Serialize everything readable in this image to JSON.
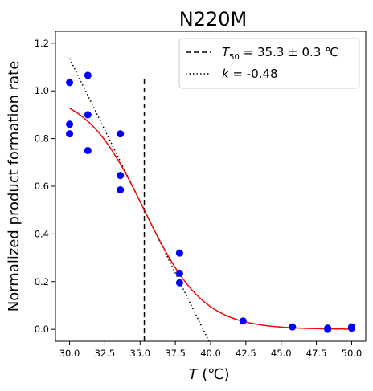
{
  "chart_data": {
    "type": "scatter",
    "title": "N220M",
    "xlabel": {
      "symbol": "T",
      "unit": " (℃)"
    },
    "ylabel": "Normalized product formation rate",
    "xlim": [
      29.0,
      51.0
    ],
    "ylim": [
      -0.05,
      1.25
    ],
    "xticks": [
      30.0,
      32.5,
      35.0,
      37.5,
      40.0,
      42.5,
      45.0,
      47.5,
      50.0
    ],
    "yticks": [
      0.0,
      0.2,
      0.4,
      0.6,
      0.8,
      1.0,
      1.2
    ],
    "grid": false,
    "legend_position": "top-right",
    "points": {
      "color": "#0000ff",
      "x": [
        30.0,
        30.0,
        30.0,
        31.3,
        31.3,
        31.3,
        33.6,
        33.6,
        33.6,
        37.8,
        37.8,
        37.8,
        42.3,
        45.8,
        48.3,
        48.3,
        50.0,
        50.0
      ],
      "y": [
        1.035,
        0.86,
        0.82,
        1.065,
        0.9,
        0.75,
        0.82,
        0.645,
        0.585,
        0.32,
        0.235,
        0.195,
        0.035,
        0.01,
        0.005,
        0.0,
        0.01,
        0.005
      ]
    },
    "fit": {
      "type": "sigmoid",
      "color": "#ff0000",
      "T50": 35.3,
      "top": 1.0,
      "slope_k": -0.48
    },
    "t50_line": {
      "x": 35.3,
      "y_range": [
        -0.05,
        1.05
      ],
      "legend_label": {
        "sym": "T",
        "sub": "50",
        "rest": " = 35.3 ± 0.3 ℃"
      }
    },
    "slope_line": {
      "x0": 35.3,
      "y0": 0.5,
      "slope_per_degC": -0.12,
      "x_range": [
        30.0,
        40.0
      ],
      "legend_label": {
        "sym": "k",
        "rest": " = -0.48"
      }
    }
  }
}
